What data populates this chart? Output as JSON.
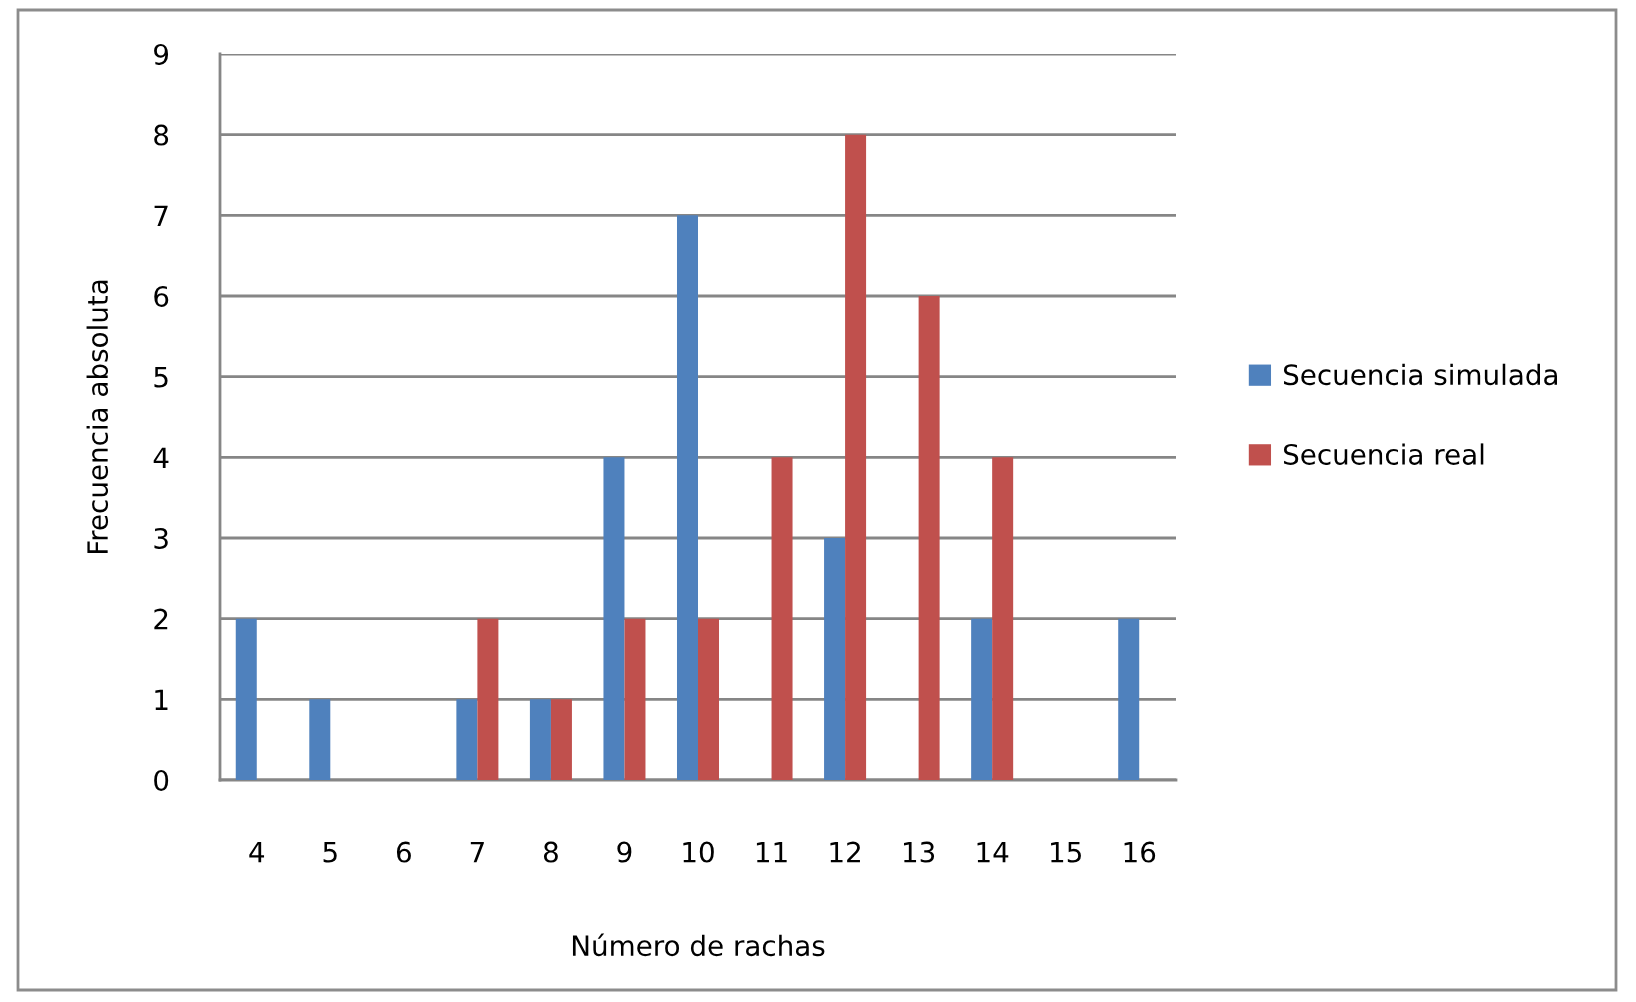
{
  "chart_data": {
    "type": "bar",
    "xlabel": "Número de rachas",
    "ylabel": "Frecuencia absoluta",
    "categories": [
      "4",
      "5",
      "6",
      "7",
      "8",
      "9",
      "10",
      "11",
      "12",
      "13",
      "14",
      "15",
      "16"
    ],
    "series": [
      {
        "name": "Secuencia simulada",
        "color": "#4f81bd",
        "values": [
          2,
          1,
          0,
          1,
          1,
          4,
          7,
          0,
          3,
          0,
          2,
          0,
          2
        ]
      },
      {
        "name": "Secuencia real",
        "color": "#c0504d",
        "values": [
          0,
          0,
          0,
          2,
          1,
          2,
          2,
          4,
          8,
          6,
          4,
          0,
          0
        ]
      }
    ],
    "ylim": [
      0,
      9
    ],
    "yticks": [
      0,
      1,
      2,
      3,
      4,
      5,
      6,
      7,
      8,
      9
    ],
    "grid": "y",
    "legend": "right"
  }
}
